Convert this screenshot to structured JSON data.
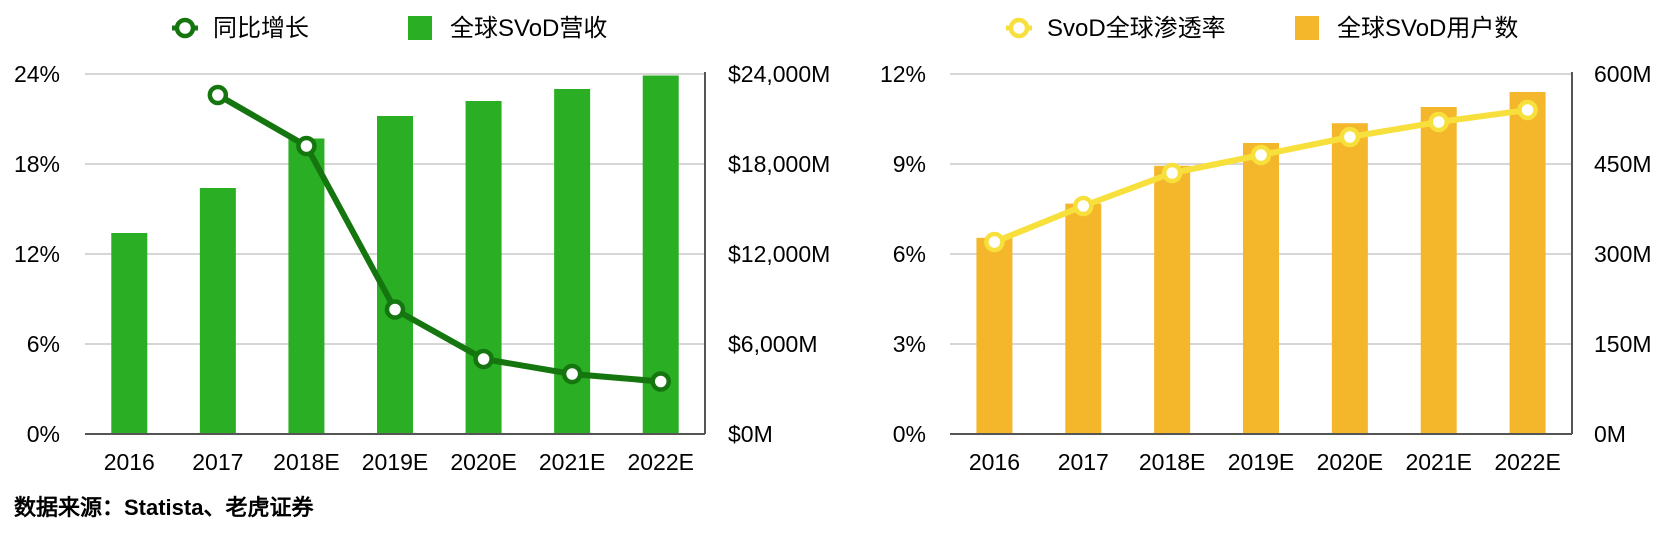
{
  "source": "数据来源：Statista、老虎证券",
  "colors": {
    "green_bar": "#2AAE24",
    "green_line": "#15760F",
    "orange_bar": "#F4B72C",
    "yellow_line": "#F7E03C",
    "grid": "#C8C8C8",
    "axis": "#555555"
  },
  "chart_data": [
    {
      "type": "bar",
      "title": "",
      "categories": [
        "2016",
        "2017",
        "2018E",
        "2019E",
        "2020E",
        "2021E",
        "2022E"
      ],
      "legend": [
        "同比增长",
        "全球SVoD营收"
      ],
      "legend_position": "top",
      "left_axis": {
        "ticks": [
          "0%",
          "6%",
          "12%",
          "18%",
          "24%"
        ],
        "range": [
          0,
          24
        ],
        "unit": "%"
      },
      "right_axis": {
        "ticks": [
          "$0M",
          "$6,000M",
          "$12,000M",
          "$18,000M",
          "$24,000M"
        ],
        "range": [
          0,
          24000
        ],
        "unit": "$M"
      },
      "series": [
        {
          "name": "全球SVoD营收",
          "kind": "bar",
          "axis": "right",
          "values": [
            13400,
            16400,
            19700,
            21200,
            22200,
            23000,
            23900
          ]
        },
        {
          "name": "同比增长",
          "kind": "line",
          "axis": "left",
          "values": [
            null,
            22.6,
            19.2,
            8.3,
            5.0,
            4.0,
            3.5
          ]
        }
      ],
      "grid": true
    },
    {
      "type": "bar",
      "title": "",
      "categories": [
        "2016",
        "2017",
        "2018E",
        "2019E",
        "2020E",
        "2021E",
        "2022E"
      ],
      "legend": [
        "SvoD全球渗透率",
        "全球SVoD用户数"
      ],
      "legend_position": "top",
      "left_axis": {
        "ticks": [
          "0%",
          "3%",
          "6%",
          "9%",
          "12%"
        ],
        "range": [
          0,
          12
        ],
        "unit": "%"
      },
      "right_axis": {
        "ticks": [
          "0M",
          "150M",
          "300M",
          "450M",
          "600M"
        ],
        "range": [
          0,
          600
        ],
        "unit": "M"
      },
      "series": [
        {
          "name": "全球SVoD用户数",
          "kind": "bar",
          "axis": "right",
          "values": [
            327,
            384,
            447,
            485,
            518,
            545,
            570
          ]
        },
        {
          "name": "SvoD全球渗透率",
          "kind": "line",
          "axis": "left",
          "values": [
            6.4,
            7.6,
            8.7,
            9.3,
            9.9,
            10.4,
            10.8
          ]
        }
      ],
      "grid": true
    }
  ]
}
